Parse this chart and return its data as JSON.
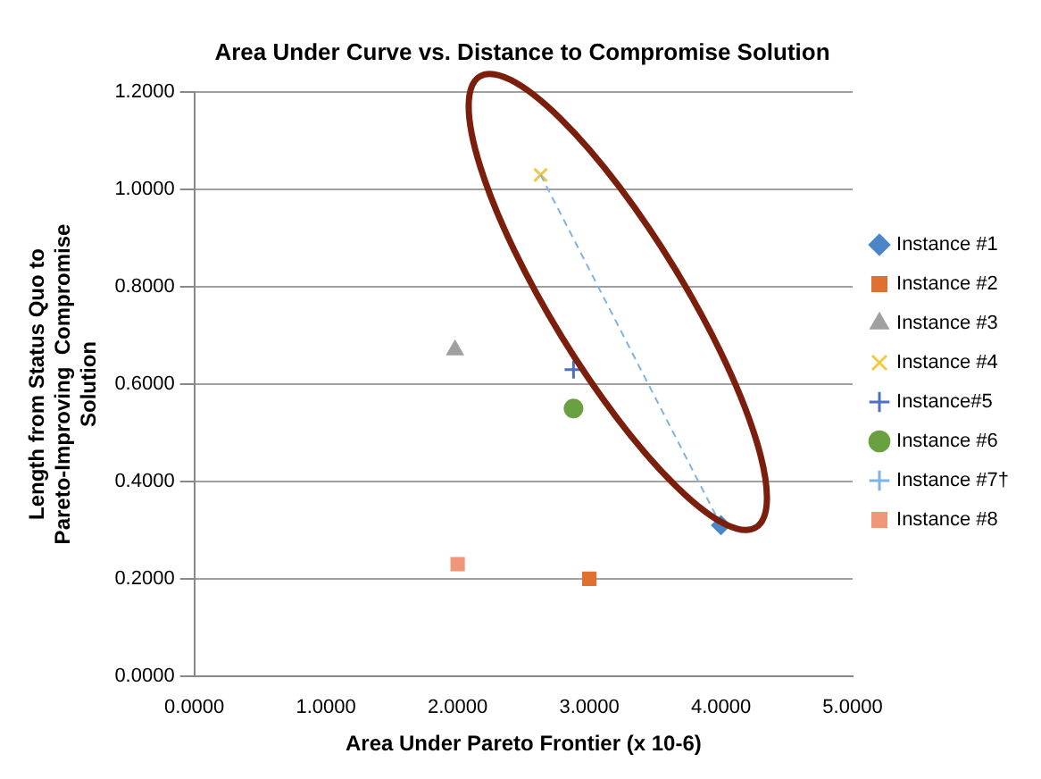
{
  "chart_data": {
    "type": "scatter",
    "title": "Area Under Curve vs. Distance to Compromise Solution",
    "xlabel": "Area Under Pareto Frontier (x 10-6)",
    "ylabel": "Length from Status Quo to Pareto-Improving  Compromise Solution",
    "xlim": [
      0,
      5
    ],
    "ylim": [
      0,
      1.2
    ],
    "xticks": [
      {
        "value": 0,
        "label": "0.0000"
      },
      {
        "value": 1,
        "label": "1.0000"
      },
      {
        "value": 2,
        "label": "2.0000"
      },
      {
        "value": 3,
        "label": "3.0000"
      },
      {
        "value": 4,
        "label": "4.0000"
      },
      {
        "value": 5,
        "label": "5.0000"
      }
    ],
    "yticks": [
      {
        "value": 0,
        "label": "0.0000"
      },
      {
        "value": 0.2,
        "label": "0.2000"
      },
      {
        "value": 0.4,
        "label": "0.4000"
      },
      {
        "value": 0.6,
        "label": "0.6000"
      },
      {
        "value": 0.8,
        "label": "0.8000"
      },
      {
        "value": 1,
        "label": "1.0000"
      },
      {
        "value": 1.2,
        "label": "1.2000"
      }
    ],
    "grid": "y",
    "legend": "right",
    "series": [
      {
        "type": "line",
        "color": "#7fb2e5",
        "line_style": "dashed",
        "marker": "none",
        "x": [
          2.63,
          4.0
        ],
        "values": [
          1.03,
          0.31
        ]
      },
      {
        "name": "Instance #1",
        "color": "#4a86c8",
        "marker": "diamond",
        "x": [
          4.0
        ],
        "values": [
          0.31
        ]
      },
      {
        "name": "Instance #2",
        "color": "#e07030",
        "marker": "square",
        "x": [
          3.0
        ],
        "values": [
          0.2
        ]
      },
      {
        "name": "Instance #3",
        "color": "#a0a0a0",
        "marker": "triangle",
        "x": [
          1.98
        ],
        "values": [
          0.67
        ]
      },
      {
        "name": "Instance #4",
        "color": "#f5c842",
        "marker": "x",
        "x": [
          2.63
        ],
        "values": [
          1.03
        ]
      },
      {
        "name": "Instance#5",
        "color": "#4f6fc0",
        "marker": "cross",
        "x": [
          2.88
        ],
        "values": [
          0.63
        ]
      },
      {
        "name": "Instance #6",
        "color": "#6aa040",
        "marker": "circle",
        "x": [
          2.88
        ],
        "values": [
          0.55
        ]
      },
      {
        "name": "Instance #7†",
        "color": "#7fb2e5",
        "marker": "cross",
        "x": [
          null
        ],
        "values": [
          null
        ]
      },
      {
        "name": "Instance #8",
        "color": "#f0967a",
        "marker": "square",
        "x": [
          2.0
        ],
        "values": [
          0.23
        ]
      }
    ]
  }
}
